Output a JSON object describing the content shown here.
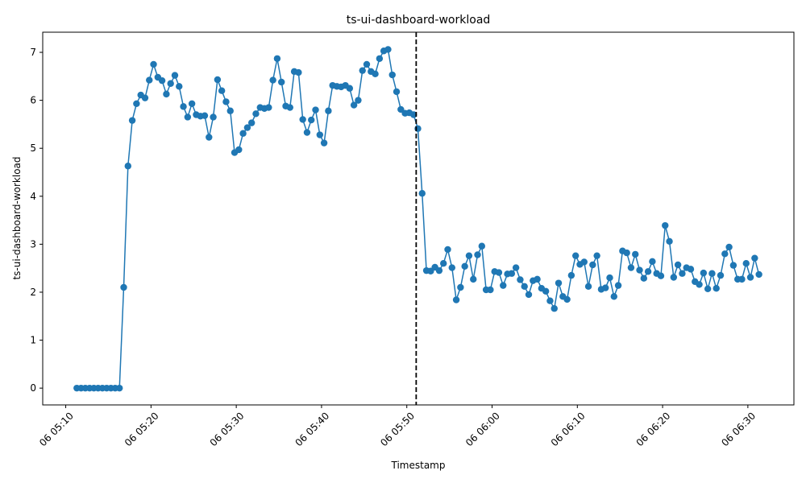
{
  "chart_data": {
    "type": "line",
    "title": "ts-ui-dashboard-workload",
    "xlabel": "Timestamp",
    "ylabel": "ts-ui-dashboard-workload",
    "x_unit": "minutes",
    "x_start_minute": 311.3,
    "x_step_minutes": 0.5,
    "xlim_minutes": [
      307.3,
      395.4
    ],
    "ylim": [
      -0.35,
      7.42
    ],
    "x_ticks": [
      {
        "minute": 310,
        "label": "06 05:10"
      },
      {
        "minute": 320,
        "label": "06 05:20"
      },
      {
        "minute": 330,
        "label": "06 05:30"
      },
      {
        "minute": 340,
        "label": "06 05:40"
      },
      {
        "minute": 350,
        "label": "06 05:50"
      },
      {
        "minute": 360,
        "label": "06 06:00"
      },
      {
        "minute": 370,
        "label": "06 06:10"
      },
      {
        "minute": 380,
        "label": "06 06:20"
      },
      {
        "minute": 390,
        "label": "06 06:30"
      }
    ],
    "y_ticks": [
      0,
      1,
      2,
      3,
      4,
      5,
      6,
      7
    ],
    "vline_minute": 351.1,
    "series_color": "#1f77b4",
    "values": [
      0,
      0,
      0,
      0,
      0,
      0,
      0,
      0,
      0,
      0,
      0,
      2.1,
      4.63,
      5.58,
      5.93,
      6.11,
      6.05,
      6.42,
      6.75,
      6.48,
      6.41,
      6.13,
      6.35,
      6.52,
      6.29,
      5.87,
      5.65,
      5.93,
      5.7,
      5.67,
      5.68,
      5.23,
      5.65,
      6.43,
      6.2,
      5.97,
      5.78,
      4.91,
      4.97,
      5.31,
      5.43,
      5.53,
      5.72,
      5.85,
      5.83,
      5.85,
      6.42,
      6.87,
      6.38,
      5.88,
      5.85,
      6.6,
      6.58,
      5.6,
      5.33,
      5.59,
      5.8,
      5.28,
      5.11,
      5.78,
      6.31,
      6.29,
      6.28,
      6.31,
      6.25,
      5.9,
      6.0,
      6.62,
      6.75,
      6.6,
      6.55,
      6.87,
      7.03,
      7.06,
      6.53,
      6.18,
      5.81,
      5.73,
      5.74,
      5.7,
      5.41,
      4.06,
      2.45,
      2.44,
      2.52,
      2.45,
      2.6,
      2.89,
      2.51,
      1.84,
      2.1,
      2.54,
      2.76,
      2.27,
      2.78,
      2.96,
      2.05,
      2.05,
      2.43,
      2.41,
      2.14,
      2.38,
      2.39,
      2.51,
      2.26,
      2.12,
      1.95,
      2.24,
      2.27,
      2.08,
      2.02,
      1.82,
      1.66,
      2.19,
      1.91,
      1.85,
      2.35,
      2.76,
      2.58,
      2.63,
      2.12,
      2.57,
      2.76,
      2.06,
      2.09,
      2.3,
      1.91,
      2.14,
      2.86,
      2.82,
      2.51,
      2.79,
      2.46,
      2.29,
      2.43,
      2.64,
      2.39,
      2.34,
      3.39,
      3.06,
      2.31,
      2.57,
      2.39,
      2.51,
      2.48,
      2.22,
      2.16,
      2.4,
      2.07,
      2.39,
      2.08,
      2.35,
      2.8,
      2.94,
      2.56,
      2.27,
      2.27,
      2.6,
      2.31,
      2.71,
      2.37
    ]
  }
}
